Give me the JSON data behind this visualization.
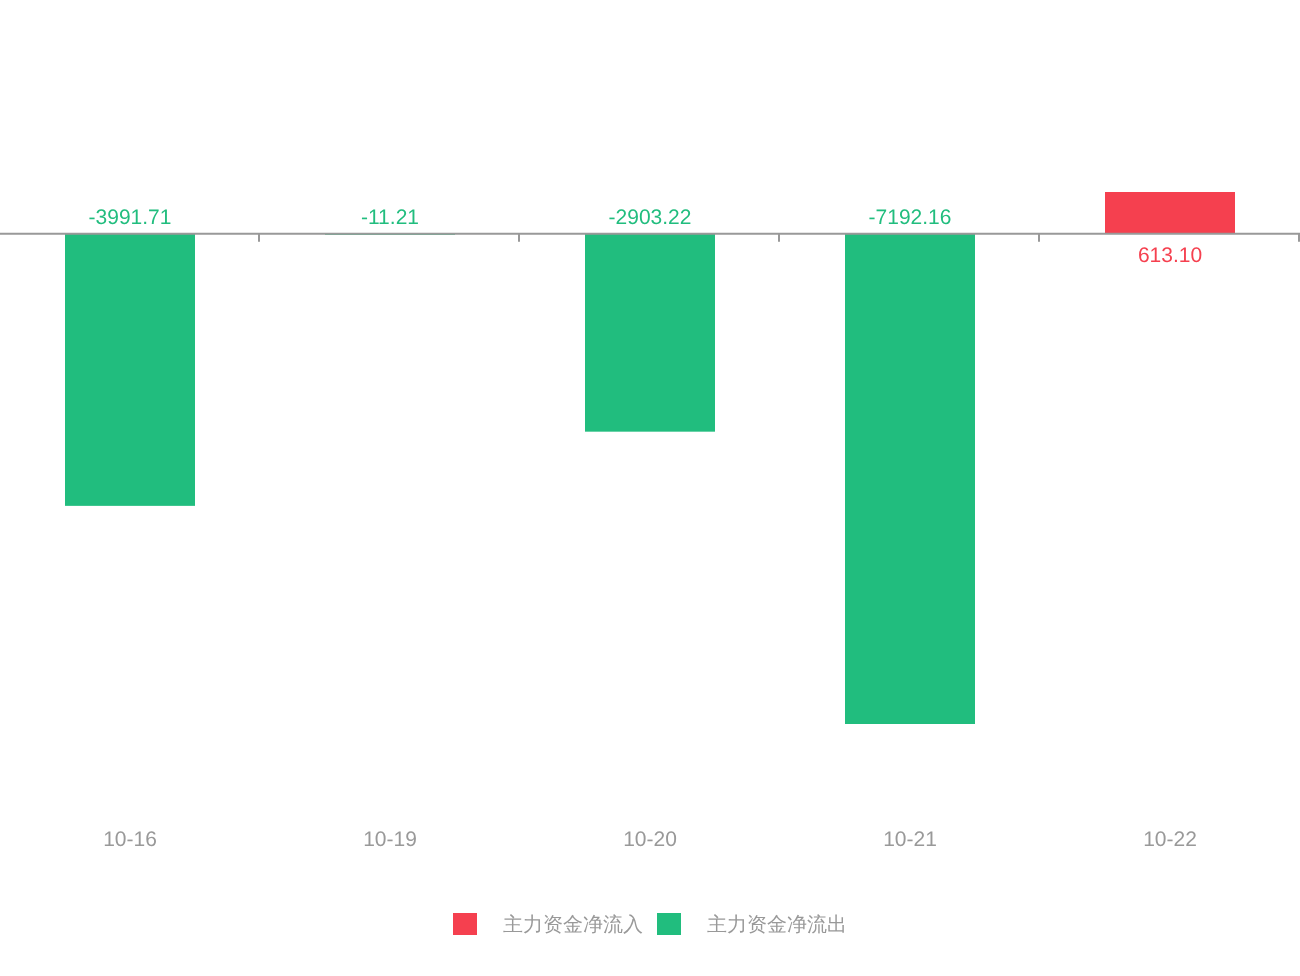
{
  "chart_data": {
    "type": "bar",
    "categories": [
      "10-16",
      "10-19",
      "10-20",
      "10-21",
      "10-22"
    ],
    "stacked": true,
    "legend": "bottom",
    "tick_labels": "x",
    "series": [
      {
        "name": "主力资金净流入",
        "color": "#f5404f",
        "values": [
          null,
          null,
          null,
          null,
          613.1
        ],
        "value_labels": [
          null,
          null,
          null,
          null,
          "613.10"
        ]
      },
      {
        "name": "主力资金净流出",
        "color": "#21bd7e",
        "values": [
          -3991.71,
          -11.21,
          -2903.22,
          -7192.16,
          null
        ],
        "value_labels": [
          "-3991.71",
          "-11.21",
          "-2903.22",
          "-7192.16",
          null
        ]
      }
    ]
  }
}
